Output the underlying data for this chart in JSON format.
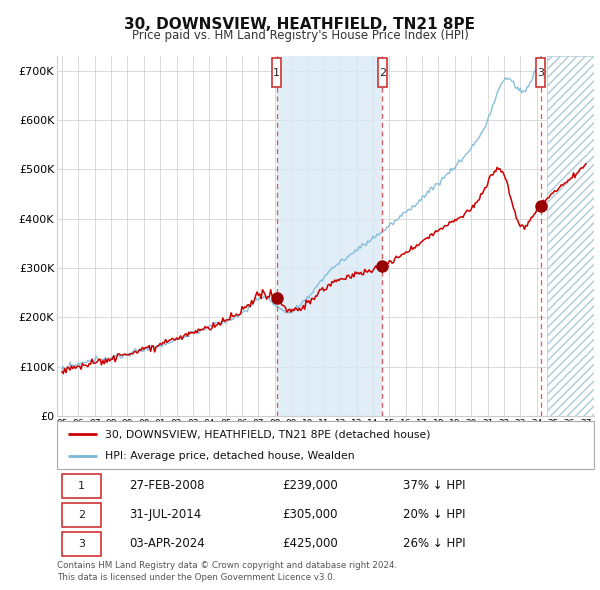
{
  "title": "30, DOWNSVIEW, HEATHFIELD, TN21 8PE",
  "subtitle": "Price paid vs. HM Land Registry's House Price Index (HPI)",
  "ylim": [
    0,
    730000
  ],
  "yticks": [
    0,
    100000,
    200000,
    300000,
    400000,
    500000,
    600000,
    700000
  ],
  "ytick_labels": [
    "£0",
    "£100K",
    "£200K",
    "£300K",
    "£400K",
    "£500K",
    "£600K",
    "£700K"
  ],
  "xlim_start": 1994.7,
  "xlim_end": 2027.5,
  "xticks": [
    1995,
    1996,
    1997,
    1998,
    1999,
    2000,
    2001,
    2002,
    2003,
    2004,
    2005,
    2006,
    2007,
    2008,
    2009,
    2010,
    2011,
    2012,
    2013,
    2014,
    2015,
    2016,
    2017,
    2018,
    2019,
    2020,
    2021,
    2022,
    2023,
    2024,
    2025,
    2026,
    2027
  ],
  "sale1_date": 2008.12,
  "sale1_price": 239000,
  "sale1_label": "27-FEB-2008",
  "sale1_amount": "£239,000",
  "sale1_hpi": "37% ↓ HPI",
  "sale2_date": 2014.58,
  "sale2_price": 305000,
  "sale2_label": "31-JUL-2014",
  "sale2_amount": "£305,000",
  "sale2_hpi": "20% ↓ HPI",
  "sale3_date": 2024.25,
  "sale3_price": 425000,
  "sale3_label": "03-APR-2024",
  "sale3_amount": "£425,000",
  "sale3_hpi": "26% ↓ HPI",
  "legend_line1": "30, DOWNSVIEW, HEATHFIELD, TN21 8PE (detached house)",
  "legend_line2": "HPI: Average price, detached house, Wealden",
  "footer_line1": "Contains HM Land Registry data © Crown copyright and database right 2024.",
  "footer_line2": "This data is licensed under the Open Government Licence v3.0.",
  "hpi_color": "#7bb8d8",
  "price_color": "#cc0000",
  "sale_dot_color": "#990000",
  "bg_color": "#ffffff",
  "grid_color": "#cccccc",
  "shade_color": "#daeaf5",
  "future_start": 2024.6
}
